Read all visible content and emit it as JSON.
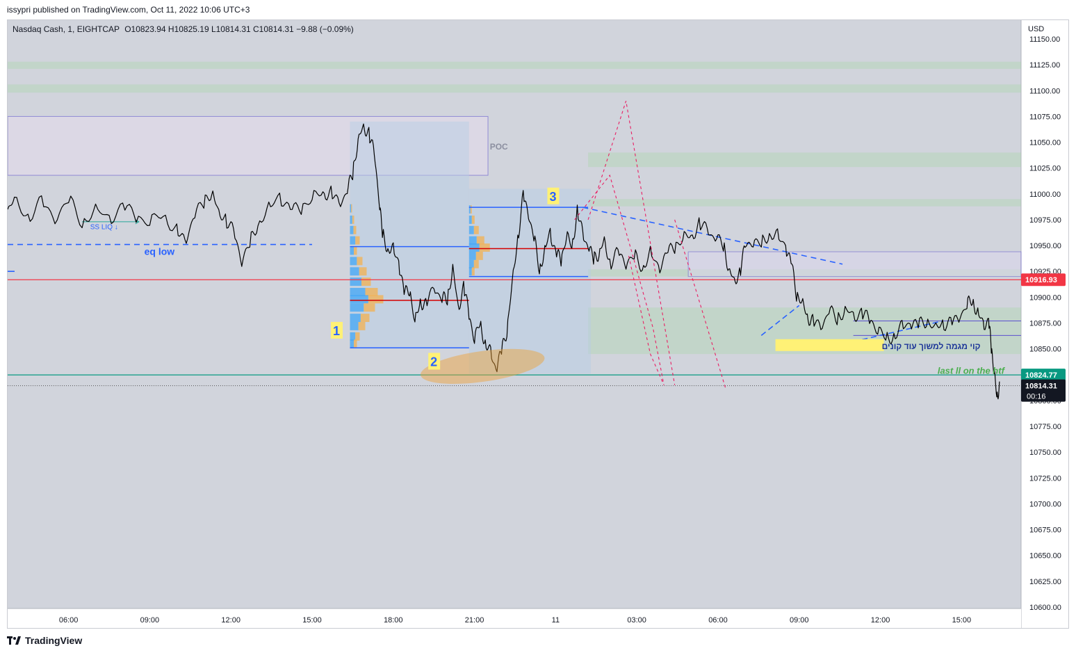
{
  "header": {
    "published": "issypri published on TradingView.com, Oct 11, 2022 10:06 UTC+3"
  },
  "legend": {
    "symbol": "Nasdaq Cash, 1, EIGHTCAP",
    "ohlc": "O10823.94  H10825.19  L10814.31  C10814.31  −9.88 (−0.09%)"
  },
  "footer": {
    "brand": "TradingView",
    "logo_icon": "tradingview-logo-icon"
  },
  "chart_data": {
    "type": "line",
    "currency": "USD",
    "ylim": [
      10600,
      11160
    ],
    "y_ticks": [
      "11150.00",
      "11125.00",
      "11100.00",
      "11075.00",
      "11050.00",
      "11025.00",
      "11000.00",
      "10975.00",
      "10950.00",
      "10925.00",
      "10900.00",
      "10875.00",
      "10850.00",
      "10825.00",
      "10800.00",
      "10775.00",
      "10750.00",
      "10725.00",
      "10700.00",
      "10675.00",
      "10650.00",
      "10625.00",
      "10600.00"
    ],
    "x_ticks": [
      "06:00",
      "09:00",
      "12:00",
      "15:00",
      "18:00",
      "21:00",
      "11",
      "03:00",
      "06:00",
      "09:00",
      "12:00",
      "15:00"
    ],
    "x_tick_hours": [
      6,
      9,
      12,
      15,
      18,
      21,
      24,
      27,
      30,
      33,
      36,
      39
    ],
    "xlim_hours": [
      3.75,
      41.2
    ],
    "price_series": [
      [
        3.75,
        10985
      ],
      [
        4,
        10995
      ],
      [
        4.5,
        10980
      ],
      [
        5,
        10990
      ],
      [
        5.5,
        10975
      ],
      [
        6,
        10992
      ],
      [
        6.5,
        10975
      ],
      [
        7,
        10985
      ],
      [
        7.5,
        10978
      ],
      [
        8,
        10985
      ],
      [
        8.5,
        10978
      ],
      [
        9,
        10972
      ],
      [
        9.5,
        10982
      ],
      [
        10,
        10966
      ],
      [
        10.3,
        10952
      ],
      [
        10.6,
        10975
      ],
      [
        11,
        10990
      ],
      [
        11.3,
        11005
      ],
      [
        11.5,
        10985
      ],
      [
        11.8,
        10978
      ],
      [
        12.1,
        10960
      ],
      [
        12.4,
        10935
      ],
      [
        12.7,
        10950
      ],
      [
        13,
        10975
      ],
      [
        13.4,
        10985
      ],
      [
        13.8,
        11000
      ],
      [
        14.2,
        10980
      ],
      [
        14.6,
        10988
      ],
      [
        15,
        10995
      ],
      [
        15.4,
        11005
      ],
      [
        15.7,
        11000
      ],
      [
        16,
        10990
      ],
      [
        16.3,
        11000
      ],
      [
        16.5,
        11020
      ],
      [
        16.7,
        11055
      ],
      [
        16.9,
        11065
      ],
      [
        17.1,
        11060
      ],
      [
        17.3,
        11035
      ],
      [
        17.5,
        10990
      ],
      [
        17.6,
        10960
      ],
      [
        17.8,
        10950
      ],
      [
        18,
        10945
      ],
      [
        18.2,
        10935
      ],
      [
        18.4,
        10900
      ],
      [
        18.6,
        10910
      ],
      [
        18.8,
        10875
      ],
      [
        19,
        10900
      ],
      [
        19.2,
        10890
      ],
      [
        19.5,
        10910
      ],
      [
        19.8,
        10895
      ],
      [
        20,
        10900
      ],
      [
        20.2,
        10930
      ],
      [
        20.4,
        10890
      ],
      [
        20.6,
        10910
      ],
      [
        20.8,
        10880
      ],
      [
        21,
        10860
      ],
      [
        21.2,
        10875
      ],
      [
        21.4,
        10858
      ],
      [
        21.6,
        10845
      ],
      [
        21.8,
        10830
      ],
      [
        22.0,
        10845
      ],
      [
        22.2,
        10870
      ],
      [
        22.4,
        10915
      ],
      [
        22.6,
        10960
      ],
      [
        22.8,
        10995
      ],
      [
        23.0,
        10980
      ],
      [
        23.2,
        10955
      ],
      [
        23.4,
        10930
      ],
      [
        23.6,
        10945
      ],
      [
        23.8,
        10965
      ],
      [
        24.0,
        10940
      ],
      [
        24.2,
        10935
      ],
      [
        24.4,
        10960
      ],
      [
        24.6,
        10950
      ],
      [
        24.8,
        10985
      ],
      [
        25.0,
        10960
      ],
      [
        25.2,
        10948
      ],
      [
        25.4,
        10935
      ],
      [
        25.6,
        10945
      ],
      [
        25.8,
        10955
      ],
      [
        26.0,
        10935
      ],
      [
        26.3,
        10940
      ],
      [
        26.6,
        10933
      ],
      [
        26.9,
        10938
      ],
      [
        27.2,
        10932
      ],
      [
        27.5,
        10942
      ],
      [
        27.8,
        10930
      ],
      [
        28.1,
        10938
      ],
      [
        28.4,
        10950
      ],
      [
        28.7,
        10957
      ],
      [
        29.0,
        10962
      ],
      [
        29.3,
        10970
      ],
      [
        29.6,
        10965
      ],
      [
        29.9,
        10955
      ],
      [
        30.2,
        10950
      ],
      [
        30.4,
        10930
      ],
      [
        30.6,
        10915
      ],
      [
        30.8,
        10925
      ],
      [
        31.0,
        10945
      ],
      [
        31.3,
        10955
      ],
      [
        31.6,
        10950
      ],
      [
        31.9,
        10965
      ],
      [
        32.2,
        10958
      ],
      [
        32.5,
        10950
      ],
      [
        32.7,
        10930
      ],
      [
        32.9,
        10905
      ],
      [
        33.1,
        10895
      ],
      [
        33.3,
        10885
      ],
      [
        33.5,
        10875
      ],
      [
        33.8,
        10870
      ],
      [
        34.1,
        10885
      ],
      [
        34.4,
        10880
      ],
      [
        34.7,
        10890
      ],
      [
        35.0,
        10882
      ],
      [
        35.3,
        10885
      ],
      [
        35.6,
        10875
      ],
      [
        35.9,
        10870
      ],
      [
        36.2,
        10860
      ],
      [
        36.5,
        10865
      ],
      [
        36.8,
        10870
      ],
      [
        37.1,
        10875
      ],
      [
        37.4,
        10870
      ],
      [
        37.7,
        10880
      ],
      [
        38.0,
        10870
      ],
      [
        38.3,
        10878
      ],
      [
        38.6,
        10872
      ],
      [
        38.9,
        10880
      ],
      [
        39.2,
        10890
      ],
      [
        39.4,
        10900
      ],
      [
        39.6,
        10885
      ],
      [
        39.8,
        10875
      ],
      [
        40.0,
        10875
      ],
      [
        40.1,
        10850
      ],
      [
        40.2,
        10830
      ],
      [
        40.3,
        10805
      ],
      [
        40.4,
        10815
      ]
    ],
    "price_line": {
      "value": 10916.93,
      "label": "10916.93",
      "color": "#f23645"
    },
    "htf_line": {
      "value": 10824.77,
      "label": "10824.77",
      "color": "#089981"
    },
    "last_price": {
      "value": 10814.31,
      "label": "10814.31",
      "countdown": "00:16"
    },
    "annotations": {
      "poc": "POC",
      "eq_low": "eq low",
      "ss_liq": "SS LIQ ↓",
      "last_ll": "last ll on the htf",
      "hebrew_note": "קוי מגמה למשוך עוד קונים",
      "markers": [
        "1",
        "2",
        "3"
      ]
    },
    "colors": {
      "background": "#d1d4dc",
      "candles": "#000000",
      "trend_blue": "#2962ff",
      "box_purple": "#5b4fcf",
      "pink_dashed": "#e91e63",
      "marker_yellow": "#fff176",
      "volume_profile_blue": "#42a5f5",
      "volume_profile_orange": "#f0b35a",
      "highlight_orange": "#f0a030",
      "zone_green": "#a5d6a7"
    }
  }
}
